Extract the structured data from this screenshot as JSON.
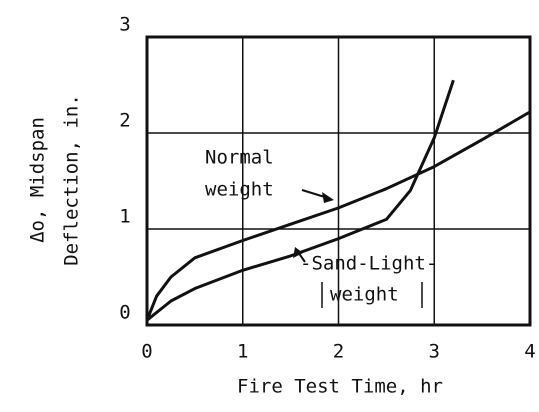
{
  "chart_data": {
    "type": "line",
    "xlabel": "Fire Test Time, hr",
    "ylabel": [
      "Δo, Midspan",
      "Deflection, in."
    ],
    "xlim": [
      0,
      4
    ],
    "xticks": [
      0,
      1,
      2,
      3,
      4
    ],
    "ylim": [
      0,
      3
    ],
    "yticks": [
      0,
      1,
      2,
      3
    ],
    "grid": true,
    "series": [
      {
        "name": "Normal weight",
        "color": "#111111",
        "x": [
          0,
          0.1,
          0.25,
          0.5,
          1,
          1.5,
          2,
          2.5,
          3,
          3.5,
          4
        ],
        "values": [
          0.05,
          0.3,
          0.5,
          0.7,
          0.88,
          1.05,
          1.22,
          1.42,
          1.65,
          1.93,
          2.22
        ]
      },
      {
        "name": "Sand-Light-weight",
        "color": "#111111",
        "x": [
          0,
          0.25,
          0.5,
          1,
          1.5,
          2,
          2.5,
          2.75,
          3,
          3.2
        ],
        "values": [
          0.05,
          0.25,
          0.38,
          0.57,
          0.72,
          0.9,
          1.1,
          1.4,
          1.95,
          2.55
        ]
      }
    ],
    "annotations": [
      {
        "lines": [
          "Normal",
          "weight"
        ]
      },
      {
        "lines": [
          "-Sand-Light-",
          "weight"
        ]
      }
    ]
  }
}
